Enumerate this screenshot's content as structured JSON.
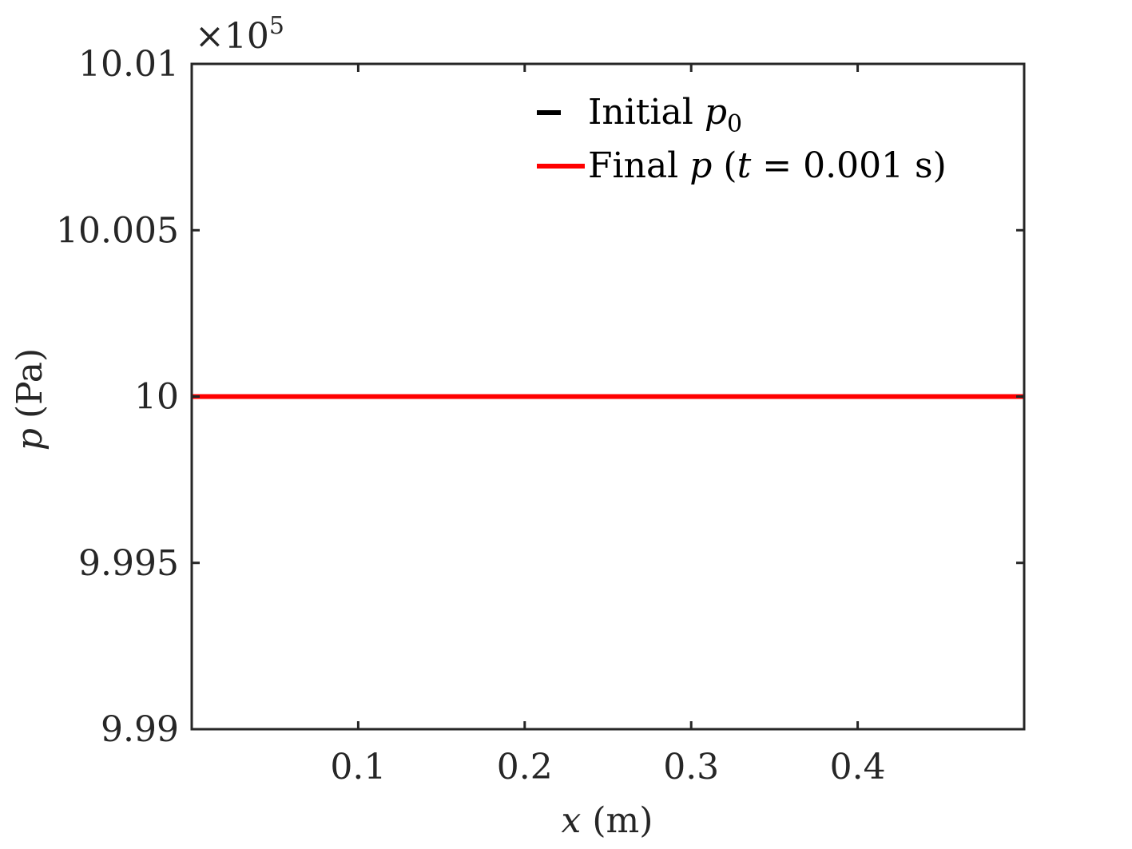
{
  "chart_data": {
    "type": "line",
    "xlabel": {
      "var": "x",
      "unit": "(m)"
    },
    "ylabel": {
      "var": "p",
      "unit": "(Pa)"
    },
    "y_exponent": {
      "prefix": "×10",
      "power": "5"
    },
    "xlim": [
      0,
      0.5
    ],
    "ylim": [
      9.99,
      10.01
    ],
    "x_ticks": [
      0.1,
      0.2,
      0.3,
      0.4
    ],
    "x_tick_labels": [
      "0.1",
      "0.2",
      "0.3",
      "0.4"
    ],
    "y_ticks": [
      9.99,
      9.995,
      10,
      10.005,
      10.01
    ],
    "y_tick_labels": [
      "9.99",
      "9.995",
      "10",
      "10.005",
      "10.01"
    ],
    "grid": false,
    "legend_position": "top-right",
    "series": [
      {
        "legend": {
          "text": "Initial ",
          "math": "p",
          "sub": "0"
        },
        "color": "#000000",
        "x": [
          0,
          0.5
        ],
        "y": [
          10,
          10
        ]
      },
      {
        "legend": {
          "text": "Final ",
          "math": "p",
          "rest_open": " (",
          "math2": "t",
          "rest": " = 0.001 s)"
        },
        "color": "#ff0000",
        "x": [
          0,
          0.5
        ],
        "y": [
          10,
          10
        ]
      }
    ]
  }
}
